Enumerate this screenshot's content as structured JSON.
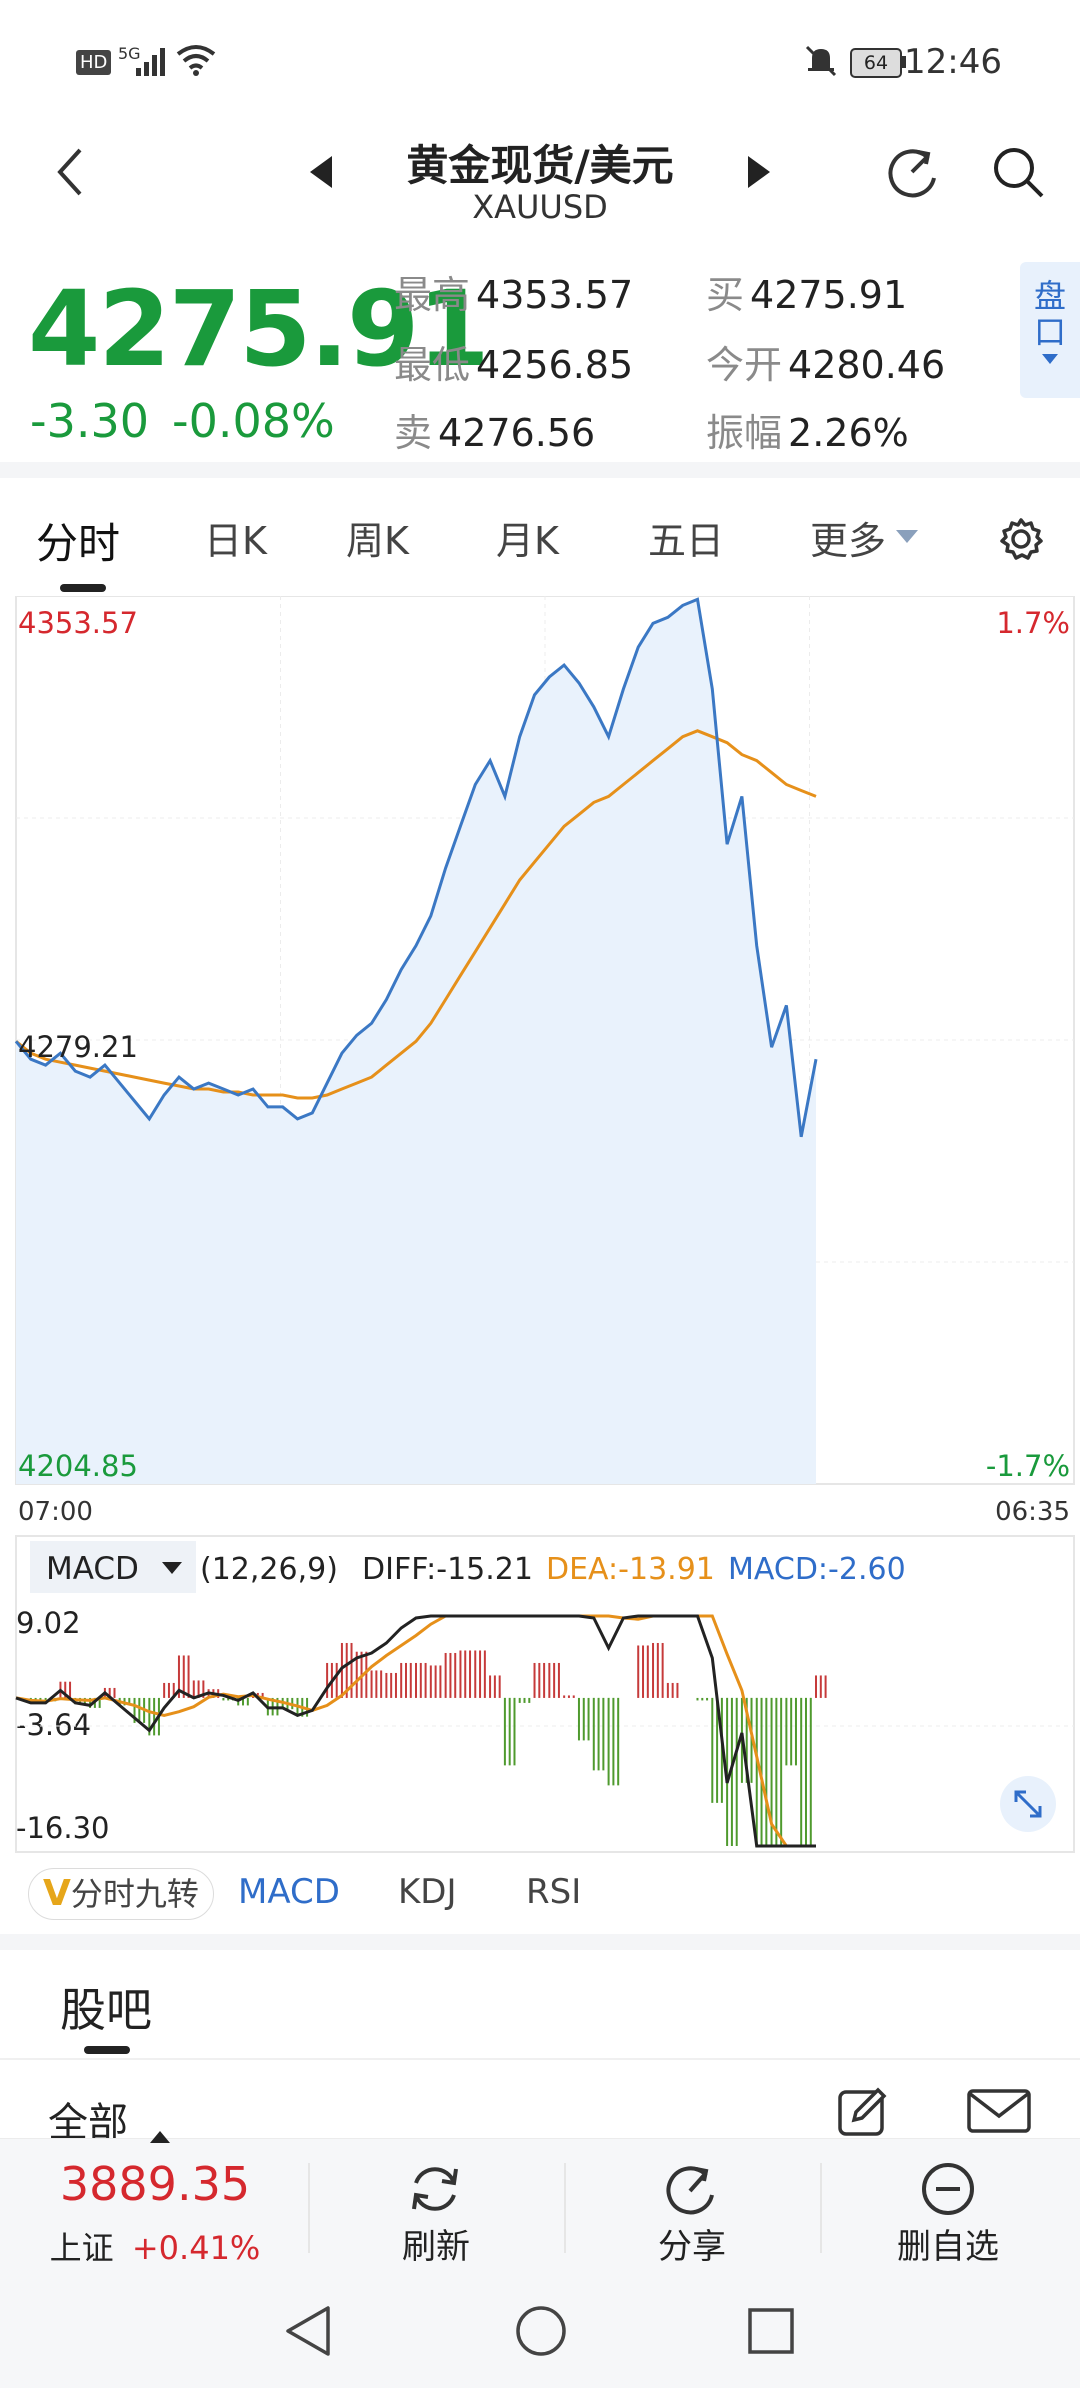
{
  "status_bar": {
    "time": "12:46",
    "battery": "64",
    "hd": "HD",
    "network": "5G"
  },
  "header": {
    "title": "黄金现货/美元",
    "subtitle": "XAUUSD"
  },
  "quote": {
    "price": "4275.91",
    "change": "-3.30",
    "change_pct": "-0.08%",
    "high_label": "最高",
    "high": "4353.57",
    "low_label": "最低",
    "low": "4256.85",
    "sell_label": "卖",
    "sell": "4276.56",
    "buy_label": "买",
    "buy": "4275.91",
    "open_label": "今开",
    "open": "4280.46",
    "amp_label": "振幅",
    "amp": "2.26%",
    "pankou_1": "盘",
    "pankou_2": "口"
  },
  "tabs": [
    "分时",
    "日K",
    "周K",
    "月K",
    "五日",
    "更多"
  ],
  "chart": {
    "max_label": "4353.57",
    "min_label": "4204.85",
    "mid_label": "4279.21",
    "pct_top": "1.7%",
    "pct_bottom": "-1.7%",
    "time_start": "07:00",
    "time_end": "06:35"
  },
  "macd": {
    "name": "MACD",
    "params": "(12,26,9)",
    "diff": "DIFF:-15.21",
    "dea": "DEA:-13.91",
    "macd": "MACD:-2.60",
    "y_top": "9.02",
    "y_mid": "-3.64",
    "y_bottom": "-16.30"
  },
  "indicator_tabs": {
    "nine_turn": "分时九转",
    "macd": "MACD",
    "kdj": "KDJ",
    "rsi": "RSI"
  },
  "guba": {
    "title": "股吧",
    "all": "全部"
  },
  "toolbar": {
    "index_value": "3889.35",
    "index_name": "上证",
    "index_pct": "+0.41%",
    "refresh": "刷新",
    "share": "分享",
    "remove": "删自选"
  },
  "colors": {
    "up": "#d5282e",
    "down": "#1a9a3c",
    "price_line": "#3b78c4",
    "avg_line": "#e6901a",
    "accent": "#2f6dc9"
  },
  "chart_data": {
    "type": "line",
    "title": "",
    "xlabel": "",
    "ylabel": "",
    "x_range": [
      "07:00",
      "06:35"
    ],
    "ylim": [
      4204.85,
      4353.57
    ],
    "prev_close": 4279.21,
    "series": [
      {
        "values": [
          4279,
          4276,
          4275,
          4277,
          4274,
          4273,
          4275,
          4272,
          4269,
          4266,
          4270,
          4273,
          4271,
          4272,
          4271,
          4270,
          4271,
          4268,
          4268,
          4266,
          4267,
          4272,
          4277,
          4280,
          4282,
          4286,
          4291,
          4295,
          4300,
          4308,
          4315,
          4322,
          4326,
          4320,
          4330,
          4337,
          4340,
          4342,
          4339,
          4335,
          4330,
          4338,
          4345,
          4349,
          4350,
          4352,
          4353,
          4338,
          4312,
          4320,
          4295,
          4278,
          4285,
          4263,
          4276
        ]
      },
      {
        "values": [
          4279,
          4277,
          4276,
          4275.5,
          4275,
          4274.5,
          4274,
          4273.5,
          4273,
          4272.5,
          4272,
          4271.5,
          4271,
          4271,
          4270.5,
          4270.5,
          4270,
          4270,
          4270,
          4269.5,
          4269.5,
          4270,
          4271,
          4272,
          4273,
          4275,
          4277,
          4279,
          4282,
          4286,
          4290,
          4294,
          4298,
          4302,
          4306,
          4309,
          4312,
          4315,
          4317,
          4319,
          4320,
          4322,
          4324,
          4326,
          4328,
          4330,
          4331,
          4330,
          4329,
          4327,
          4326,
          4324,
          4322,
          4321,
          4320
        ]
      }
    ]
  }
}
